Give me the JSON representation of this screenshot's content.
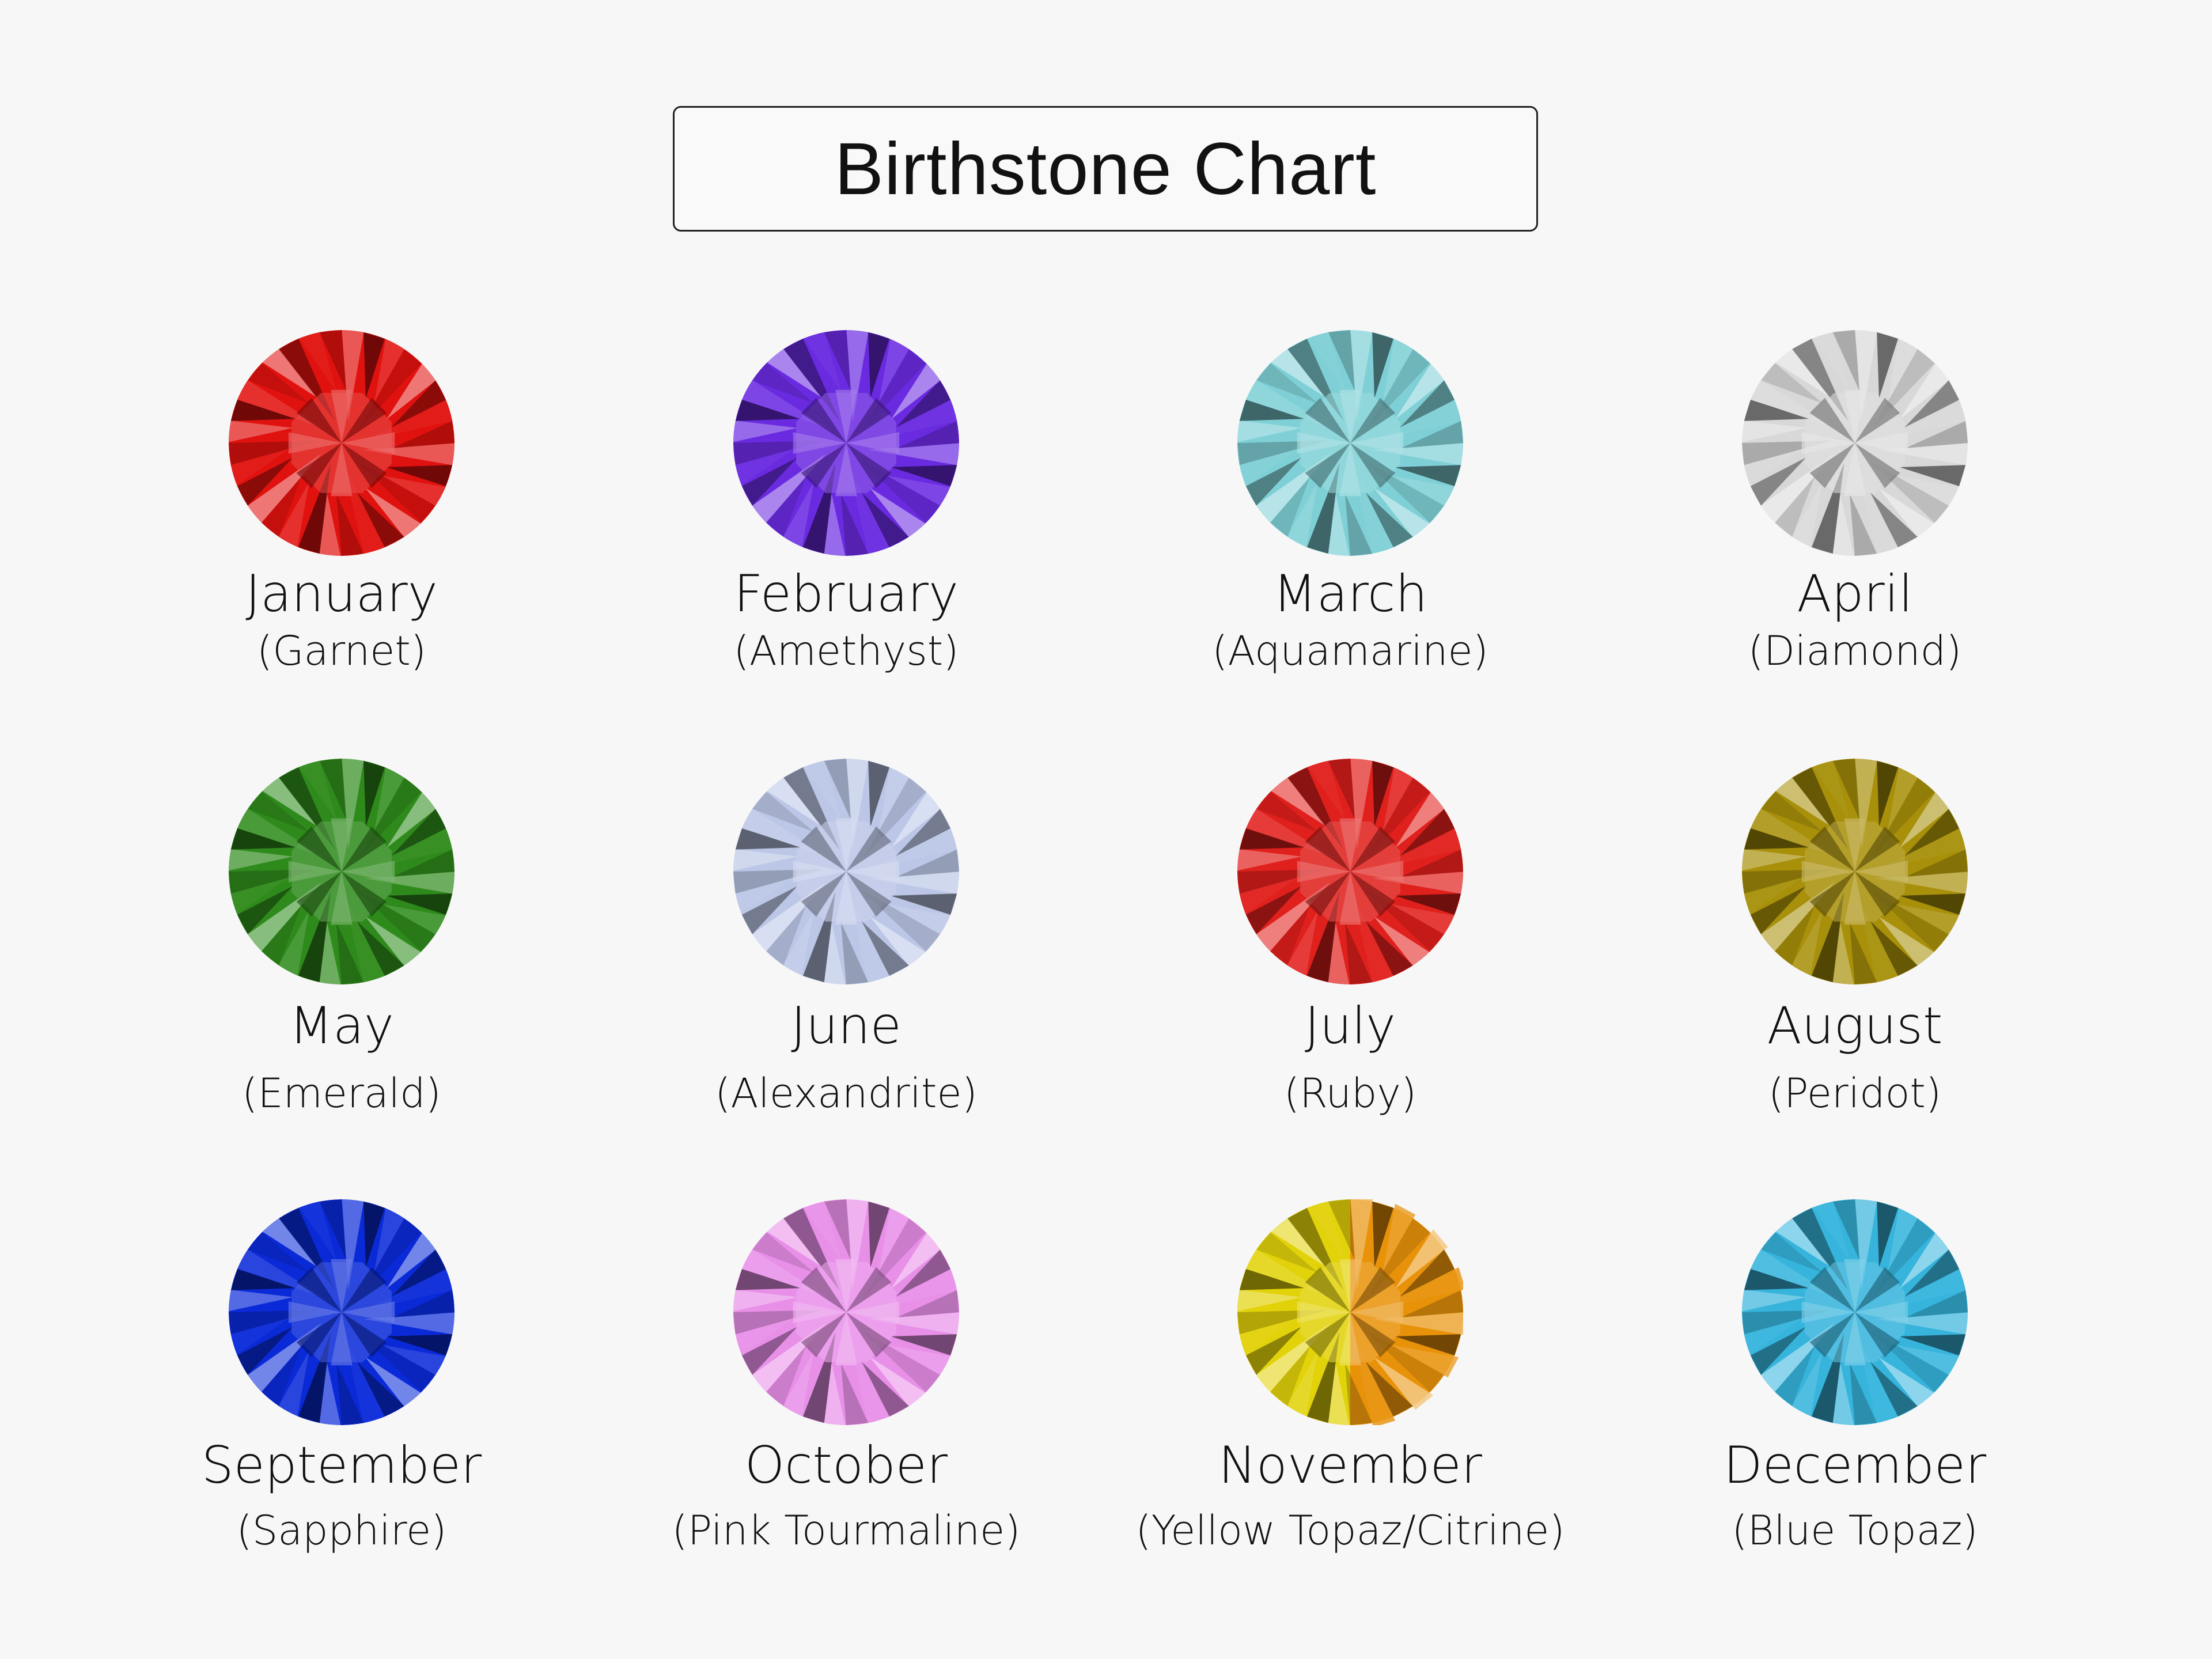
{
  "title": "Birthstone Chart",
  "stones": [
    {
      "month": "January",
      "stone": "(Garnet)",
      "color": "#e0120f",
      "color2": null
    },
    {
      "month": "February",
      "stone": "(Amethyst)",
      "color": "#6a2ae0",
      "color2": null
    },
    {
      "month": "March",
      "stone": "(Aquamarine)",
      "color": "#7fd0d6",
      "color2": null
    },
    {
      "month": "April",
      "stone": "(Diamond)",
      "color": "#d8d8d8",
      "color2": null
    },
    {
      "month": "May",
      "stone": "(Emerald)",
      "color": "#2f8a1c",
      "color2": null
    },
    {
      "month": "June",
      "stone": "(Alexandrite)",
      "color": "#bcc6e6",
      "color2": null
    },
    {
      "month": "July",
      "stone": "(Ruby)",
      "color": "#e0201c",
      "color2": null
    },
    {
      "month": "August",
      "stone": "(Peridot)",
      "color": "#a8900a",
      "color2": null
    },
    {
      "month": "September",
      "stone": "(Sapphire)",
      "color": "#0a2ad8",
      "color2": null
    },
    {
      "month": "October",
      "stone": "(Pink Tourmaline)",
      "color": "#e890e8",
      "color2": null
    },
    {
      "month": "November",
      "stone": "(Yellow Topaz/Citrine)",
      "color": "#e2d20a",
      "color2": "#e8920a"
    },
    {
      "month": "December",
      "stone": "(Blue Topaz)",
      "color": "#36b4dc",
      "color2": null
    }
  ]
}
